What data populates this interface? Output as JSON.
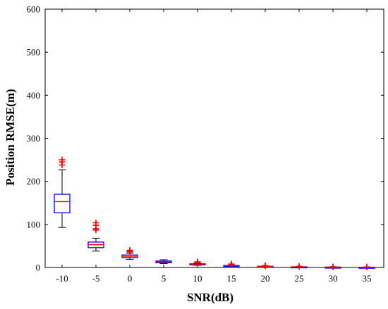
{
  "chart_data": {
    "type": "boxplot",
    "xlabel": "SNR(dB)",
    "ylabel": "Position RMSE(m)",
    "ylim": [
      0,
      600
    ],
    "yticks": [
      0,
      100,
      200,
      300,
      400,
      500,
      600
    ],
    "categories": [
      "-10",
      "-5",
      "0",
      "5",
      "10",
      "15",
      "20",
      "25",
      "30",
      "35"
    ],
    "grid": false,
    "colors": {
      "box": "#0000ff",
      "median": "#ff0000",
      "whisker": "#000000",
      "outlier": "#ff0000"
    },
    "boxes": [
      {
        "category": "-10",
        "whisker_low": 93,
        "q1": 127,
        "median": 153,
        "q3": 170,
        "whisker_high": 227,
        "outliers": [
          238,
          245,
          250
        ]
      },
      {
        "category": "-5",
        "whisker_low": 38,
        "q1": 46,
        "median": 53,
        "q3": 59,
        "whisker_high": 68,
        "outliers": [
          87,
          90,
          98,
          104
        ]
      },
      {
        "category": "0",
        "whisker_low": 19,
        "q1": 23,
        "median": 26,
        "q3": 29,
        "whisker_high": 33,
        "outliers": [
          36,
          38,
          40
        ]
      },
      {
        "category": "5",
        "whisker_low": 9,
        "q1": 11,
        "median": 13,
        "q3": 15,
        "whisker_high": 18,
        "outliers": []
      },
      {
        "category": "10",
        "whisker_low": 5,
        "q1": 6.5,
        "median": 7.5,
        "q3": 8.5,
        "whisker_high": 10,
        "outliers": [
          11,
          12,
          13
        ]
      },
      {
        "category": "15",
        "whisker_low": 3,
        "q1": 3.8,
        "median": 4.3,
        "q3": 4.8,
        "whisker_high": 5.5,
        "outliers": [
          6,
          7,
          8
        ]
      },
      {
        "category": "20",
        "whisker_low": 1.8,
        "q1": 2.2,
        "median": 2.5,
        "q3": 2.8,
        "whisker_high": 3.2,
        "outliers": [
          3.6,
          4.2
        ]
      },
      {
        "category": "25",
        "whisker_low": 1,
        "q1": 1.2,
        "median": 1.4,
        "q3": 1.6,
        "whisker_high": 1.8,
        "outliers": [
          2.2,
          2.6
        ]
      },
      {
        "category": "30",
        "whisker_low": 0.6,
        "q1": 0.75,
        "median": 0.85,
        "q3": 0.95,
        "whisker_high": 1.1,
        "outliers": [
          1.3,
          1.5
        ]
      },
      {
        "category": "35",
        "whisker_low": 0.4,
        "q1": 0.5,
        "median": 0.55,
        "q3": 0.6,
        "whisker_high": 0.7,
        "outliers": [
          0.9,
          1.1
        ]
      }
    ]
  }
}
